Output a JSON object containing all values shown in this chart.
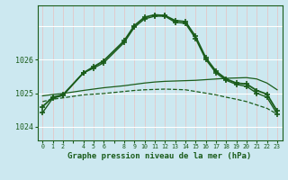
{
  "background_color": "#cce8f0",
  "grid_color_v": "#e8c0c0",
  "grid_color_h": "#ffffff",
  "line_color": "#1a5c1a",
  "xlabel": "Graphe pression niveau de la mer (hPa)",
  "xlabel_fontsize": 6.5,
  "yticks": [
    1024,
    1025,
    1026
  ],
  "ylim": [
    1023.6,
    1027.6
  ],
  "xlim": [
    -0.5,
    23.5
  ],
  "xtick_labels": [
    "0",
    "1",
    "2",
    "",
    "4",
    "5",
    "6",
    "",
    "8",
    "9",
    "10",
    "11",
    "12",
    "13",
    "14",
    "15",
    "16",
    "17",
    "18",
    "19",
    "20",
    "21",
    "22",
    "23"
  ],
  "series": [
    {
      "x": [
        0,
        1,
        2,
        4,
        5,
        6,
        8,
        9,
        10,
        11,
        12,
        13,
        14,
        15,
        16,
        17,
        18,
        19,
        20,
        21,
        22,
        23
      ],
      "y": [
        1024.75,
        1024.82,
        1024.86,
        1024.95,
        1024.97,
        1024.99,
        1025.05,
        1025.08,
        1025.1,
        1025.11,
        1025.12,
        1025.11,
        1025.1,
        1025.05,
        1025.0,
        1024.95,
        1024.88,
        1024.82,
        1024.75,
        1024.65,
        1024.55,
        1024.38
      ],
      "style": "--",
      "marker": null,
      "linewidth": 0.9
    },
    {
      "x": [
        0,
        1,
        2,
        4,
        5,
        6,
        8,
        9,
        10,
        11,
        12,
        13,
        14,
        15,
        16,
        17,
        18,
        19,
        20,
        21,
        22,
        23
      ],
      "y": [
        1024.92,
        1024.96,
        1024.99,
        1025.08,
        1025.12,
        1025.16,
        1025.22,
        1025.26,
        1025.3,
        1025.33,
        1025.35,
        1025.36,
        1025.37,
        1025.38,
        1025.4,
        1025.42,
        1025.44,
        1025.45,
        1025.46,
        1025.42,
        1025.3,
        1025.1
      ],
      "style": "-",
      "marker": null,
      "linewidth": 0.9
    },
    {
      "x": [
        0,
        1,
        2,
        4,
        5,
        6,
        8,
        9,
        10,
        11,
        12,
        13,
        14,
        15,
        16,
        17,
        18,
        19,
        20,
        21,
        22,
        23
      ],
      "y": [
        1024.6,
        1024.88,
        1024.95,
        1025.6,
        1025.78,
        1025.96,
        1026.55,
        1027.0,
        1027.25,
        1027.32,
        1027.3,
        1027.15,
        1027.12,
        1026.68,
        1026.05,
        1025.65,
        1025.42,
        1025.3,
        1025.27,
        1025.08,
        1024.97,
        1024.47
      ],
      "style": "-",
      "marker": "+",
      "markersize": 5,
      "linewidth": 1.3
    },
    {
      "x": [
        0,
        1,
        2,
        4,
        5,
        6,
        8,
        9,
        10,
        11,
        12,
        13,
        14,
        15,
        16,
        17,
        18,
        19,
        20,
        21,
        22,
        23
      ],
      "y": [
        1024.42,
        1024.85,
        1024.93,
        1025.6,
        1025.74,
        1025.9,
        1026.5,
        1026.95,
        1027.2,
        1027.28,
        1027.28,
        1027.1,
        1027.07,
        1026.62,
        1026.0,
        1025.6,
        1025.38,
        1025.26,
        1025.2,
        1025.0,
        1024.88,
        1024.38
      ],
      "style": "-",
      "marker": "+",
      "markersize": 5,
      "linewidth": 1.0
    }
  ]
}
